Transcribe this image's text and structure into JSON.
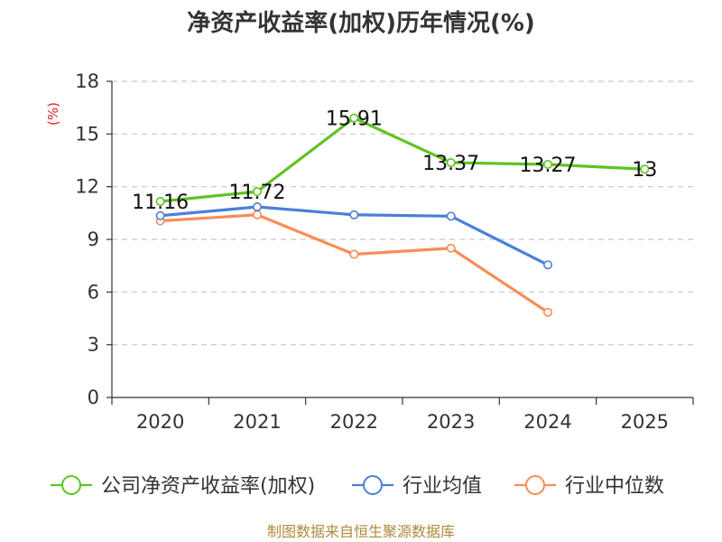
{
  "chart_data": {
    "type": "line",
    "title": "净资产收益率(加权)历年情况(%)",
    "unit": "(%)",
    "categories": [
      "2020",
      "2021",
      "2022",
      "2023",
      "2024",
      "2025"
    ],
    "ylim": [
      0,
      18
    ],
    "yticks": [
      0,
      3,
      6,
      9,
      12,
      15,
      18
    ],
    "grid": true,
    "legend_position": "bottom",
    "series": [
      {
        "name": "公司净资产收益率(加权)",
        "color": "#5ec422",
        "values": [
          11.16,
          11.72,
          15.91,
          13.37,
          13.27,
          13
        ],
        "labels": [
          "11.16",
          "11.72",
          "15.91",
          "13.37",
          "13.27",
          "13"
        ]
      },
      {
        "name": "行业均值",
        "color": "#4a7fd8",
        "values": [
          10.35,
          10.85,
          10.4,
          10.32,
          7.55,
          null
        ]
      },
      {
        "name": "行业中位数",
        "color": "#fa8c55",
        "values": [
          10.05,
          10.4,
          8.15,
          8.5,
          4.85,
          null
        ]
      }
    ]
  },
  "source": "制图数据来自恒生聚源数据库"
}
